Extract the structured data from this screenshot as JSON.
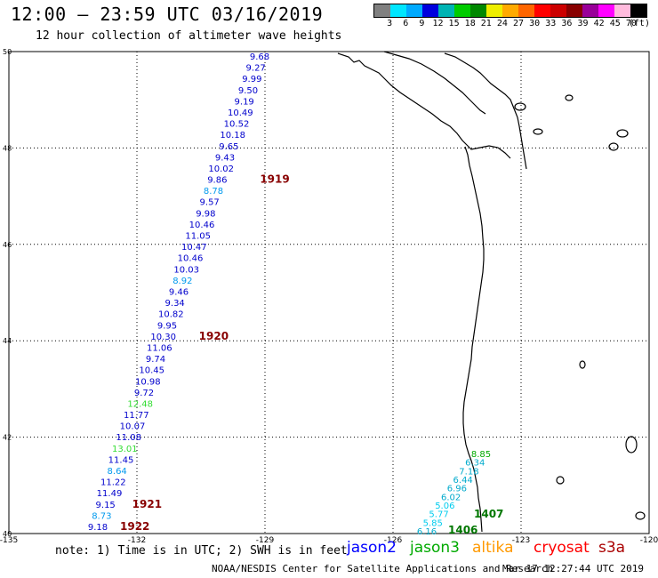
{
  "title": "12:00 — 23:59 UTC 03/16/2019",
  "subtitle": "12 hour collection of altimeter wave heights",
  "legend": {
    "colors": [
      "#808080",
      "#00e6ff",
      "#00aaff",
      "#0000dd",
      "#00b4b4",
      "#00cc00",
      "#008800",
      "#eeee00",
      "#ffaa00",
      "#ff6600",
      "#ff0000",
      "#cc0000",
      "#880000",
      "#990099",
      "#ff00ff",
      "#ffbbdd",
      "#000000"
    ],
    "labels": [
      "3",
      "6",
      "9",
      "12",
      "15",
      "18",
      "21",
      "24",
      "27",
      "30",
      "33",
      "36",
      "39",
      "42",
      "45",
      "70",
      "(ft)"
    ]
  },
  "axes": {
    "lon_ticks": [
      "-135",
      "-132",
      "-129",
      "-126",
      "-123",
      "-120"
    ],
    "lat_ticks": [
      "50",
      "48",
      "46",
      "44",
      "42",
      "40"
    ]
  },
  "track1": {
    "color": "#00008b",
    "values": [
      {
        "v": "9.68",
        "c": "#0000cc"
      },
      {
        "v": "9.27",
        "c": "#0000cc"
      },
      {
        "v": "9.99",
        "c": "#0000cc"
      },
      {
        "v": "9.50",
        "c": "#0000cc"
      },
      {
        "v": "9.19",
        "c": "#0000cc"
      },
      {
        "v": "10.49",
        "c": "#0000cc"
      },
      {
        "v": "10.52",
        "c": "#0000cc"
      },
      {
        "v": "10.18",
        "c": "#0000cc"
      },
      {
        "v": "9.65",
        "c": "#0000cc"
      },
      {
        "v": "9.43",
        "c": "#0000cc"
      },
      {
        "v": "10.02",
        "c": "#0000cc"
      },
      {
        "v": "9.86",
        "c": "#0000cc"
      },
      {
        "v": "8.78",
        "c": "#0099ee"
      },
      {
        "v": "9.57",
        "c": "#0000cc"
      },
      {
        "v": "9.98",
        "c": "#0000cc"
      },
      {
        "v": "10.46",
        "c": "#0000cc"
      },
      {
        "v": "11.05",
        "c": "#0000cc"
      },
      {
        "v": "10.47",
        "c": "#0000cc"
      },
      {
        "v": "10.46",
        "c": "#0000cc"
      },
      {
        "v": "10.03",
        "c": "#0000cc"
      },
      {
        "v": "8.92",
        "c": "#0099ee"
      },
      {
        "v": "9.46",
        "c": "#0000cc"
      },
      {
        "v": "9.34",
        "c": "#0000cc"
      },
      {
        "v": "10.82",
        "c": "#0000cc"
      },
      {
        "v": "9.95",
        "c": "#0000cc"
      },
      {
        "v": "10.30",
        "c": "#0000cc"
      },
      {
        "v": "11.06",
        "c": "#0000cc"
      },
      {
        "v": "9.74",
        "c": "#0000cc"
      },
      {
        "v": "10.45",
        "c": "#0000cc"
      },
      {
        "v": "10.98",
        "c": "#0000cc"
      },
      {
        "v": "9.72",
        "c": "#0000cc"
      },
      {
        "v": "12.48",
        "c": "#33dd33"
      },
      {
        "v": "11.77",
        "c": "#0000cc"
      },
      {
        "v": "10.07",
        "c": "#0000cc"
      },
      {
        "v": "11.08",
        "c": "#0000cc"
      },
      {
        "v": "13.01",
        "c": "#33dd33"
      },
      {
        "v": "11.45",
        "c": "#0000cc"
      },
      {
        "v": "8.64",
        "c": "#0099ee"
      },
      {
        "v": "11.22",
        "c": "#0000cc"
      },
      {
        "v": "11.49",
        "c": "#0000cc"
      },
      {
        "v": "9.15",
        "c": "#0000cc"
      },
      {
        "v": "8.73",
        "c": "#0099ee"
      },
      {
        "v": "9.18",
        "c": "#0000cc"
      }
    ],
    "time_labels": [
      "1919",
      "1920",
      "1921",
      "1922"
    ]
  },
  "track2": {
    "values": [
      {
        "v": "8.85",
        "c": "#00aa00"
      },
      {
        "v": "6.34",
        "c": "#00aacc"
      },
      {
        "v": "7.18",
        "c": "#00aacc"
      },
      {
        "v": "6.44",
        "c": "#00aacc"
      },
      {
        "v": "6.96",
        "c": "#00aacc"
      },
      {
        "v": "6.02",
        "c": "#00aacc"
      },
      {
        "v": "5.06",
        "c": "#00ccee"
      },
      {
        "v": "5.77",
        "c": "#00ccee"
      },
      {
        "v": "5.85",
        "c": "#00ccee"
      },
      {
        "v": "6.16",
        "c": "#00aacc"
      }
    ],
    "time_labels": [
      "1407",
      "1406"
    ]
  },
  "note": "note: 1) Time is in UTC; 2) SWH is in feet",
  "satellites": [
    {
      "name": "jason2",
      "color": "#0000ff"
    },
    {
      "name": "jason3",
      "color": "#00aa00"
    },
    {
      "name": "altika",
      "color": "#ff9900"
    },
    {
      "name": "cryosat",
      "color": "#ff0000"
    },
    {
      "name": "s3a",
      "color": "#aa0000"
    }
  ],
  "credit": "NOAA/NESDIS Center for Satellite Applications and Research",
  "timestamp": "Mar 17 12:27:44 UTC 2019"
}
